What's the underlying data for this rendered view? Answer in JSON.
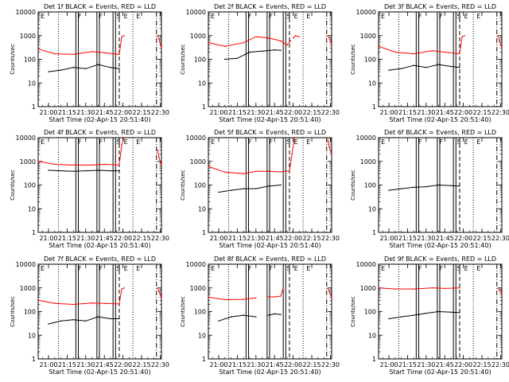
{
  "start_time_label": "Start Time (02-Apr-15 20:51:40)",
  "ylabel": "Counts/sec",
  "x_ticks": [
    "21:00",
    "21:15",
    "21:30",
    "21:45",
    "22:00",
    "22:15",
    "22:30"
  ],
  "y_ticks": [
    "1",
    "10",
    "100",
    "1000",
    "10000"
  ],
  "colors": {
    "events": "#000000",
    "lld": "#ff0000"
  },
  "chart_data": [
    {
      "type": "line",
      "title": "Det 1f BLACK = Events, RED = LLD",
      "xlabel": "Start Time (02-Apr-15 20:51:40)",
      "ylabel": "Counts/sec",
      "xlim": [
        "20:51:40",
        "22:31:00"
      ],
      "ylim": [
        1,
        10000
      ],
      "yscale": "log",
      "flag_labels": [
        "E",
        "F",
        "F",
        "S",
        "E",
        "E"
      ],
      "series": [
        {
          "color": "#000000",
          "x": [
            "21:00",
            "21:10",
            "21:20",
            "21:30",
            "21:40",
            "21:50",
            "21:57"
          ],
          "values": [
            30,
            35,
            45,
            40,
            60,
            45,
            40
          ]
        },
        {
          "color": "#ff0000",
          "x": [
            "20:52",
            "21:05",
            "21:20",
            "21:35",
            "21:45",
            "21:57",
            "21:59",
            "22:01"
          ],
          "values": [
            270,
            170,
            160,
            210,
            190,
            160,
            900,
            1000
          ]
        },
        {
          "color": "#ff0000",
          "x": [
            "22:28",
            "22:29",
            "22:31"
          ],
          "values": [
            1000,
            700,
            300
          ]
        }
      ]
    },
    {
      "type": "line",
      "title": "Det 2f BLACK = Events, RED = LLD",
      "xlabel": "Start Time (02-Apr-15 20:51:40)",
      "ylabel": "Counts/sec",
      "xlim": [
        "20:51:40",
        "22:31:00"
      ],
      "ylim": [
        1,
        10000
      ],
      "yscale": "log",
      "flag_labels": [
        "E",
        "F",
        "F",
        "S",
        "E",
        "E"
      ],
      "series": [
        {
          "color": "#000000",
          "x": [
            "21:05",
            "21:15",
            "21:25",
            "21:35",
            "21:45",
            "21:50"
          ],
          "values": [
            100,
            110,
            200,
            220,
            250,
            240
          ]
        },
        {
          "color": "#ff0000",
          "x": [
            "20:52",
            "21:05",
            "21:20",
            "21:30",
            "21:40",
            "21:50",
            "21:55",
            "21:58"
          ],
          "values": [
            500,
            350,
            500,
            900,
            800,
            600,
            400,
            600
          ]
        },
        {
          "color": "#ff0000",
          "x": [
            "22:00",
            "22:02",
            "22:05"
          ],
          "values": [
            800,
            1000,
            900
          ]
        },
        {
          "color": "#ff0000",
          "x": [
            "22:28",
            "22:30",
            "22:31"
          ],
          "values": [
            1000,
            600,
            450
          ]
        }
      ]
    },
    {
      "type": "line",
      "title": "Det 3f BLACK = Events, RED = LLD",
      "xlabel": "Start Time (02-Apr-15 20:51:40)",
      "ylabel": "Counts/sec",
      "xlim": [
        "20:51:40",
        "22:31:00"
      ],
      "ylim": [
        1,
        10000
      ],
      "yscale": "log",
      "flag_labels": [
        "E",
        "F",
        "F",
        "S",
        "E",
        "E"
      ],
      "series": [
        {
          "color": "#000000",
          "x": [
            "21:00",
            "21:10",
            "21:20",
            "21:30",
            "21:40",
            "21:50",
            "21:57"
          ],
          "values": [
            35,
            40,
            55,
            45,
            60,
            50,
            45
          ]
        },
        {
          "color": "#ff0000",
          "x": [
            "20:52",
            "21:05",
            "21:20",
            "21:35",
            "21:45",
            "21:57",
            "21:59",
            "22:01"
          ],
          "values": [
            350,
            200,
            170,
            230,
            200,
            170,
            900,
            1000
          ]
        },
        {
          "color": "#ff0000",
          "x": [
            "22:28",
            "22:29",
            "22:31"
          ],
          "values": [
            1000,
            600,
            300
          ]
        }
      ]
    },
    {
      "type": "line",
      "title": "Det 4f BLACK = Events, RED = LLD",
      "xlabel": "Start Time (02-Apr-15 20:51:40)",
      "ylabel": "Counts/sec",
      "xlim": [
        "20:51:40",
        "22:31:00"
      ],
      "ylim": [
        1,
        10000
      ],
      "yscale": "log",
      "flag_labels": [
        "E",
        "F",
        "F",
        "S",
        "E",
        "E"
      ],
      "series": [
        {
          "color": "#000000",
          "x": [
            "21:00",
            "21:10",
            "21:20",
            "21:30",
            "21:40",
            "21:50",
            "21:57"
          ],
          "values": [
            420,
            400,
            380,
            400,
            420,
            400,
            400
          ]
        },
        {
          "color": "#ff0000",
          "x": [
            "20:52",
            "21:05",
            "21:20",
            "21:35",
            "21:45",
            "21:57",
            "21:59",
            "22:01"
          ],
          "values": [
            1000,
            750,
            700,
            700,
            750,
            700,
            5000,
            10000
          ]
        },
        {
          "color": "#ff0000",
          "x": [
            "22:28",
            "22:29",
            "22:31"
          ],
          "values": [
            3000,
            1500,
            700
          ]
        }
      ]
    },
    {
      "type": "line",
      "title": "Det 5f BLACK = Events, RED = LLD",
      "xlabel": "Start Time (02-Apr-15 20:51:40)",
      "ylabel": "Counts/sec",
      "xlim": [
        "20:51:40",
        "22:31:00"
      ],
      "ylim": [
        1,
        10000
      ],
      "yscale": "log",
      "flag_labels": [
        "E",
        "F",
        "F",
        "S",
        "E",
        "E"
      ],
      "series": [
        {
          "color": "#000000",
          "x": [
            "21:00",
            "21:10",
            "21:20",
            "21:30",
            "21:40",
            "21:50"
          ],
          "values": [
            50,
            60,
            70,
            70,
            90,
            100
          ]
        },
        {
          "color": "#ff0000",
          "x": [
            "20:52",
            "21:05",
            "21:20",
            "21:30",
            "21:40",
            "21:50",
            "21:57",
            "21:59",
            "22:01"
          ],
          "values": [
            600,
            350,
            300,
            380,
            380,
            360,
            400,
            2000,
            10000
          ]
        },
        {
          "color": "#ff0000",
          "x": [
            "22:28",
            "22:29",
            "22:31"
          ],
          "values": [
            8000,
            4000,
            2000
          ]
        }
      ]
    },
    {
      "type": "line",
      "title": "Det 6f BLACK = Events, RED = LLD",
      "xlabel": "Start Time (02-Apr-15 20:51:40)",
      "ylabel": "Counts/sec",
      "xlim": [
        "20:51:40",
        "22:31:00"
      ],
      "ylim": [
        1,
        10000
      ],
      "yscale": "log",
      "flag_labels": [
        "E",
        "F",
        "F",
        "S",
        "E",
        "E"
      ],
      "series": [
        {
          "color": "#000000",
          "x": [
            "21:00",
            "21:10",
            "21:20",
            "21:30",
            "21:40",
            "21:50",
            "21:57"
          ],
          "values": [
            60,
            70,
            80,
            85,
            100,
            95,
            90
          ]
        }
      ]
    },
    {
      "type": "line",
      "title": "Det 7f BLACK = Events, RED = LLD",
      "xlabel": "Start Time (02-Apr-15 20:51:40)",
      "ylabel": "Counts/sec",
      "xlim": [
        "20:51:40",
        "22:31:00"
      ],
      "ylim": [
        1,
        10000
      ],
      "yscale": "log",
      "flag_labels": [
        "E",
        "F",
        "F",
        "S",
        "E",
        "E"
      ],
      "series": [
        {
          "color": "#000000",
          "x": [
            "21:00",
            "21:10",
            "21:20",
            "21:30",
            "21:40",
            "21:50",
            "21:57"
          ],
          "values": [
            30,
            40,
            45,
            40,
            60,
            50,
            50
          ]
        },
        {
          "color": "#ff0000",
          "x": [
            "20:52",
            "21:05",
            "21:20",
            "21:35",
            "21:45",
            "21:57",
            "21:59",
            "22:01"
          ],
          "values": [
            300,
            220,
            200,
            230,
            220,
            210,
            900,
            1000
          ]
        },
        {
          "color": "#ff0000",
          "x": [
            "22:28",
            "22:29",
            "22:31"
          ],
          "values": [
            1000,
            700,
            400
          ]
        }
      ]
    },
    {
      "type": "line",
      "title": "Det 8f BLACK = Events, RED = LLD",
      "xlabel": "Start Time (02-Apr-15 20:51:40)",
      "ylabel": "Counts/sec",
      "xlim": [
        "20:51:40",
        "22:31:00"
      ],
      "ylim": [
        1,
        10000
      ],
      "yscale": "log",
      "flag_labels": [
        "E",
        "F",
        "F",
        "S",
        "E",
        "E"
      ],
      "series": [
        {
          "color": "#000000",
          "x": [
            "21:00",
            "21:10",
            "21:20",
            "21:30"
          ],
          "values": [
            40,
            60,
            70,
            60
          ]
        },
        {
          "color": "#000000",
          "x": [
            "21:40",
            "21:45",
            "21:50"
          ],
          "values": [
            70,
            80,
            75
          ]
        },
        {
          "color": "#ff0000",
          "x": [
            "20:52",
            "21:05",
            "21:20",
            "21:30"
          ],
          "values": [
            400,
            320,
            330,
            380
          ]
        },
        {
          "color": "#ff0000",
          "x": [
            "21:40",
            "21:45",
            "21:50",
            "21:52"
          ],
          "values": [
            420,
            420,
            450,
            1000
          ]
        },
        {
          "color": "#ff0000",
          "x": [
            "22:28",
            "22:29",
            "22:31"
          ],
          "values": [
            1000,
            700,
            400
          ]
        }
      ]
    },
    {
      "type": "line",
      "title": "Det 9f BLACK = Events, RED = LLD",
      "xlabel": "Start Time (02-Apr-15 20:51:40)",
      "ylabel": "Counts/sec",
      "xlim": [
        "20:51:40",
        "22:31:00"
      ],
      "ylim": [
        1,
        10000
      ],
      "yscale": "log",
      "flag_labels": [
        "E",
        "F",
        "F",
        "S",
        "E",
        "E"
      ],
      "series": [
        {
          "color": "#000000",
          "x": [
            "21:00",
            "21:10",
            "21:20",
            "21:30",
            "21:40",
            "21:50",
            "21:57"
          ],
          "values": [
            50,
            60,
            70,
            85,
            100,
            95,
            90
          ]
        },
        {
          "color": "#ff0000",
          "x": [
            "20:52",
            "21:05",
            "21:20",
            "21:35",
            "21:45",
            "21:57"
          ],
          "values": [
            1000,
            900,
            900,
            1000,
            950,
            1000
          ]
        },
        {
          "color": "#ff0000",
          "x": [
            "22:28",
            "22:29",
            "22:31"
          ],
          "values": [
            1000,
            800,
            600
          ]
        }
      ]
    }
  ]
}
